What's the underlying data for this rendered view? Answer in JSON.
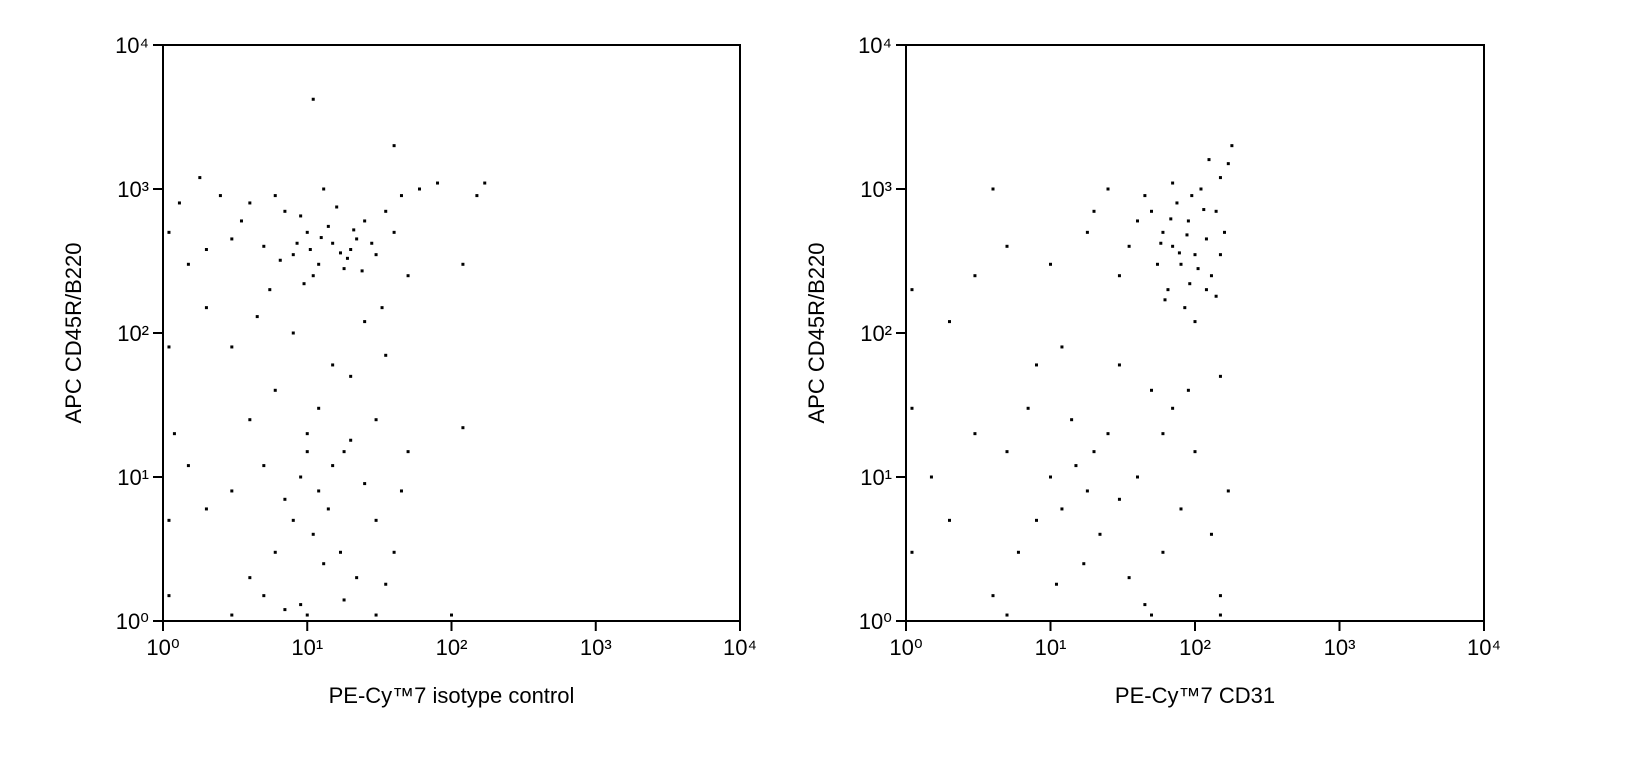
{
  "chart_data": [
    {
      "type": "scatter",
      "xlabel": "PE-Cy™7 isotype control",
      "ylabel": "APC CD45R/B220",
      "color": "#000000",
      "xlog": true,
      "ylog": true,
      "xlim": [
        1,
        10000
      ],
      "ylim": [
        1,
        10000
      ],
      "xticks": [
        {
          "value": 1,
          "label": "10⁰"
        },
        {
          "value": 10,
          "label": "10¹"
        },
        {
          "value": 100,
          "label": "10²"
        },
        {
          "value": 1000,
          "label": "10³"
        },
        {
          "value": 10000,
          "label": "10⁴"
        }
      ],
      "yticks": [
        {
          "value": 1,
          "label": "10⁰"
        },
        {
          "value": 10,
          "label": "10¹"
        },
        {
          "value": 100,
          "label": "10²"
        },
        {
          "value": 1000,
          "label": "10³"
        },
        {
          "value": 10000,
          "label": "10⁴"
        }
      ],
      "x": [
        5,
        8,
        10,
        12,
        15,
        20,
        25,
        7,
        3,
        2,
        1.5,
        4,
        6,
        9,
        11,
        14,
        18,
        22,
        30,
        35,
        40,
        3.5,
        2.5,
        13,
        16,
        19,
        24,
        28,
        6.5,
        8.5,
        10.5,
        12.5,
        17,
        21,
        9.5,
        5.5,
        45,
        60,
        80,
        150,
        170,
        120,
        1.3,
        1.8,
        50,
        33,
        4.5,
        11,
        40,
        3,
        8,
        15,
        25,
        6,
        12,
        20,
        2,
        35,
        4,
        10,
        18,
        30,
        3,
        5,
        7,
        9,
        10,
        12,
        15,
        20,
        8,
        6,
        11,
        14,
        25,
        30,
        4,
        17,
        22,
        5,
        9,
        13,
        2,
        1.5,
        40,
        45,
        120,
        50,
        35,
        7,
        18,
        1.2,
        1.1,
        1.1,
        1.1,
        1.1,
        3,
        10,
        30,
        100
      ],
      "values": [
        400,
        350,
        500,
        300,
        420,
        380,
        600,
        700,
        450,
        380,
        300,
        800,
        900,
        650,
        250,
        550,
        280,
        450,
        350,
        700,
        500,
        600,
        900,
        1000,
        750,
        330,
        270,
        420,
        320,
        420,
        380,
        460,
        360,
        520,
        220,
        200,
        900,
        1000,
        1100,
        900,
        1100,
        300,
        800,
        1200,
        250,
        150,
        130,
        4200,
        2000,
        80,
        100,
        60,
        120,
        40,
        30,
        50,
        150,
        70,
        25,
        20,
        15,
        25,
        8,
        12,
        7,
        10,
        15,
        8,
        12,
        18,
        5,
        3,
        4,
        6,
        9,
        5,
        2,
        3,
        2,
        1.5,
        1.3,
        2.5,
        6,
        12,
        3,
        8,
        22,
        15,
        1.8,
        1.2,
        1.4,
        20,
        500,
        80,
        5,
        1.5,
        1.1,
        1.1,
        1.1,
        1.1
      ]
    },
    {
      "type": "scatter",
      "xlabel": "PE-Cy™7 CD31",
      "ylabel": "APC CD45R/B220",
      "color": "#000000",
      "xlog": true,
      "ylog": true,
      "xlim": [
        1,
        10000
      ],
      "ylim": [
        1,
        10000
      ],
      "xticks": [
        {
          "value": 1,
          "label": "10⁰"
        },
        {
          "value": 10,
          "label": "10¹"
        },
        {
          "value": 100,
          "label": "10²"
        },
        {
          "value": 1000,
          "label": "10³"
        },
        {
          "value": 10000,
          "label": "10⁴"
        }
      ],
      "yticks": [
        {
          "value": 1,
          "label": "10⁰"
        },
        {
          "value": 10,
          "label": "10¹"
        },
        {
          "value": 100,
          "label": "10²"
        },
        {
          "value": 1000,
          "label": "10³"
        },
        {
          "value": 10000,
          "label": "10⁴"
        }
      ],
      "x": [
        70,
        80,
        60,
        90,
        100,
        120,
        50,
        75,
        110,
        130,
        65,
        85,
        95,
        140,
        160,
        55,
        45,
        40,
        150,
        170,
        180,
        100,
        70,
        35,
        30,
        125,
        88,
        78,
        68,
        105,
        115,
        58,
        92,
        62,
        150,
        140,
        25,
        20,
        18,
        10,
        4,
        5,
        3,
        2,
        8,
        12,
        30,
        50,
        70,
        150,
        120,
        15,
        18,
        12,
        20,
        10,
        25,
        8,
        6,
        30,
        14,
        22,
        40,
        5,
        3,
        2,
        1.5,
        35,
        60,
        80,
        100,
        130,
        170,
        150,
        45,
        17,
        11,
        4,
        7,
        60,
        90,
        1.1,
        1.1,
        1.1,
        5,
        50,
        150
      ],
      "values": [
        400,
        300,
        500,
        600,
        350,
        450,
        700,
        800,
        1000,
        250,
        200,
        150,
        900,
        700,
        500,
        300,
        900,
        600,
        1200,
        1500,
        2000,
        120,
        1100,
        400,
        250,
        1600,
        480,
        360,
        620,
        280,
        720,
        420,
        220,
        170,
        350,
        180,
        1000,
        700,
        500,
        300,
        1000,
        400,
        250,
        120,
        60,
        80,
        60,
        40,
        30,
        50,
        200,
        12,
        8,
        6,
        15,
        10,
        20,
        5,
        3,
        7,
        25,
        4,
        10,
        15,
        20,
        5,
        10,
        2,
        3,
        6,
        15,
        4,
        8,
        1.5,
        1.3,
        2.5,
        1.8,
        1.5,
        30,
        20,
        40,
        200,
        30,
        3,
        1.1,
        1.1,
        1.1
      ]
    }
  ]
}
